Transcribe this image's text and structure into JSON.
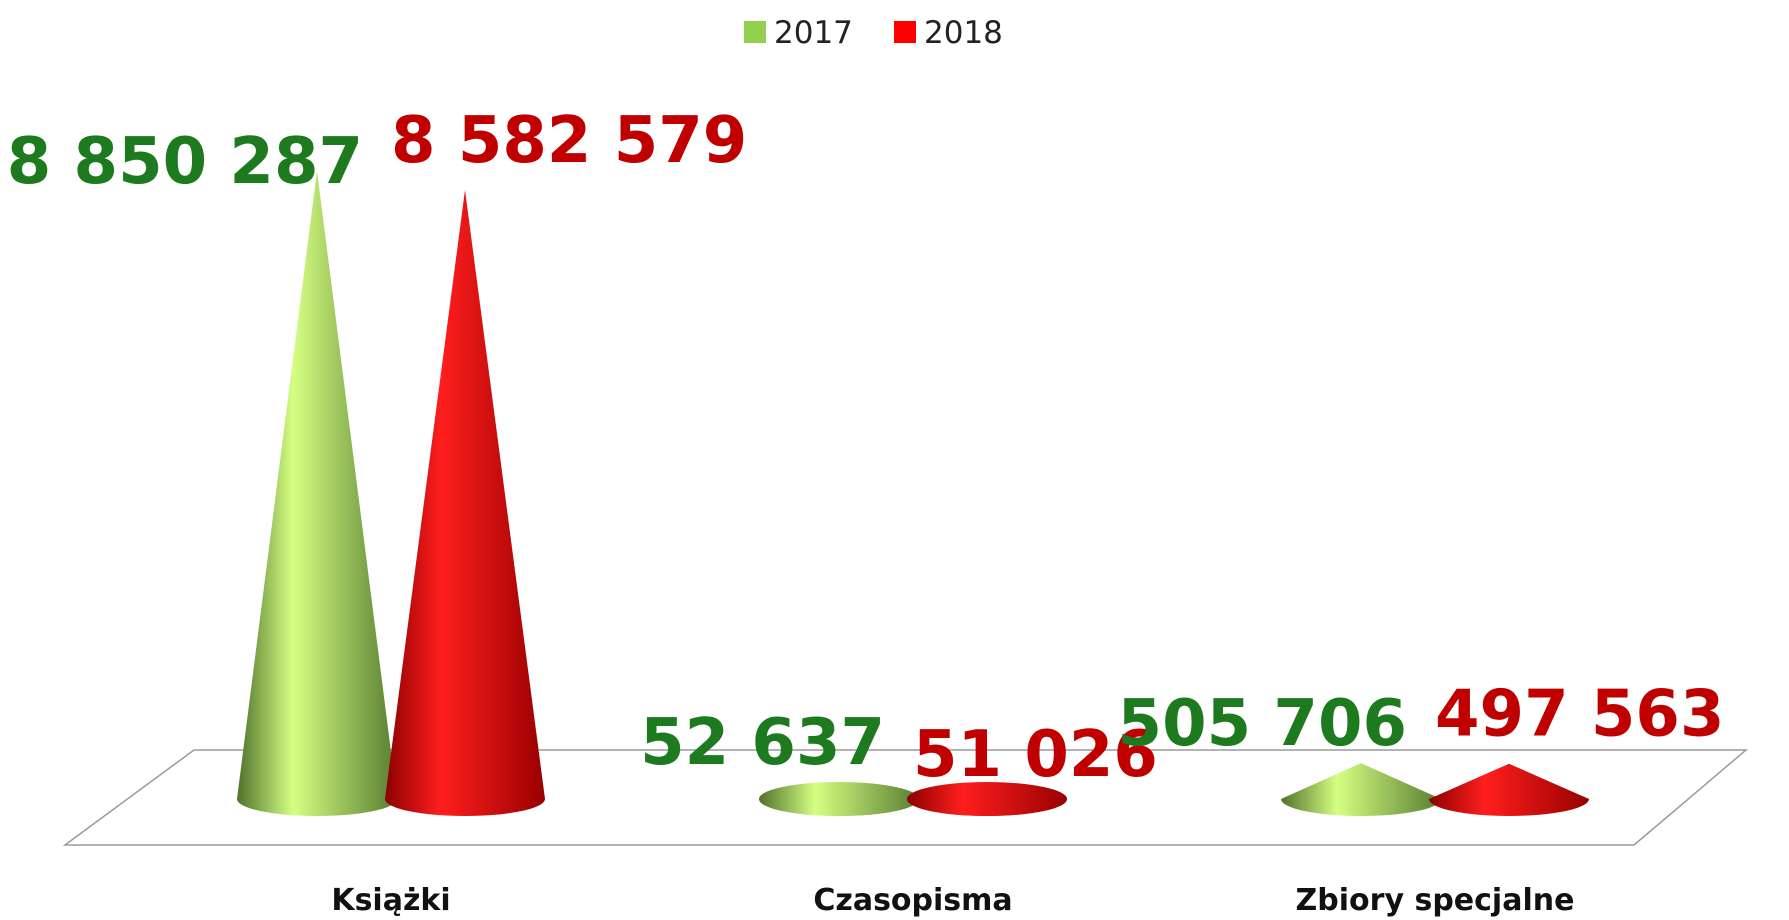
{
  "chart_data": {
    "type": "cone",
    "categories": [
      "Książki",
      "Czasopisma",
      "Zbiory specjalne"
    ],
    "series": [
      {
        "name": "2017",
        "color": "#92d050",
        "label_color": "#1e7a1e",
        "values": [
          8850287,
          52637,
          505706
        ],
        "value_labels": [
          "8 850 287",
          "52 637",
          "505 706"
        ]
      },
      {
        "name": "2018",
        "color": "#ff0000",
        "label_color": "#c00000",
        "values": [
          8582579,
          51026,
          497563
        ],
        "value_labels": [
          "8 582 579",
          "51 026",
          "497 563"
        ]
      }
    ],
    "legend": "top"
  }
}
